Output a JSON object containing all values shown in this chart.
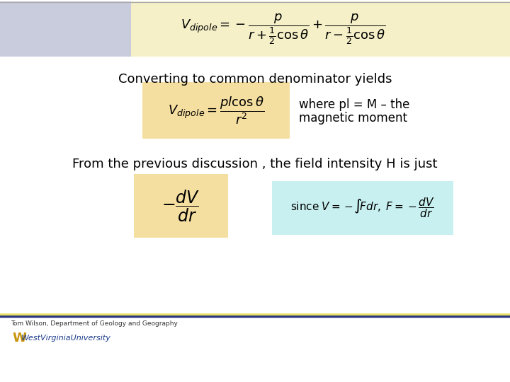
{
  "bg_color": "#ffffff",
  "top_box_left_color": "#c8ccdd",
  "top_box_right_color": "#f5f0c8",
  "formula_box_color": "#f5dfa0",
  "since_box_color": "#c8f0f0",
  "text_color": "#000000",
  "bottom_line_color1": "#2d3580",
  "bottom_line_color2": "#e8e060",
  "footer_text": "Tom Wilson, Department of Geology and Geography",
  "text1": "Converting to common denominator yields",
  "text2_line1": "where pl = M – the",
  "text2_line2": "magnetic moment",
  "text3": "From the previous discussion , the field intensity H is just"
}
